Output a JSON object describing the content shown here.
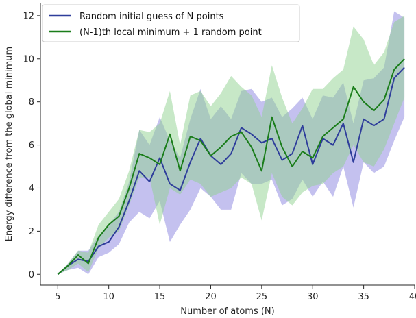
{
  "chart_data": {
    "type": "line",
    "title": "",
    "xlabel": "Number of atoms (N)",
    "ylabel": "Energy difference from the global minimum",
    "xlim": [
      3.3,
      40
    ],
    "ylim": [
      -0.5,
      12.6
    ],
    "xticks": [
      5,
      10,
      15,
      20,
      25,
      30,
      35,
      40
    ],
    "yticks": [
      0,
      2,
      4,
      6,
      8,
      10,
      12
    ],
    "grid": false,
    "legend_position": "top-left",
    "x": [
      5,
      6,
      7,
      8,
      9,
      10,
      11,
      12,
      13,
      14,
      15,
      16,
      17,
      18,
      19,
      20,
      21,
      22,
      23,
      24,
      25,
      26,
      27,
      28,
      29,
      30,
      31,
      32,
      33,
      34,
      35,
      36,
      37,
      38,
      39
    ],
    "series": [
      {
        "name": "Random initial guess of N points",
        "color": "#2e3d9b",
        "band_color": "#8a84e0",
        "values": [
          0,
          0.4,
          0.7,
          0.6,
          1.3,
          1.5,
          2.2,
          3.4,
          4.8,
          4.3,
          5.4,
          4.2,
          3.9,
          5.2,
          6.3,
          5.5,
          5.1,
          5.6,
          6.8,
          6.5,
          6.1,
          6.3,
          5.3,
          5.6,
          6.9,
          5.1,
          6.3,
          6.0,
          7.0,
          5.2,
          7.2,
          6.9,
          7.2,
          9.1,
          9.6
        ],
        "upper": [
          0,
          0.5,
          1.1,
          1.1,
          1.8,
          2.3,
          2.9,
          4.3,
          6.7,
          6.0,
          7.3,
          6.2,
          5.4,
          7.2,
          8.6,
          7.2,
          7.8,
          7.2,
          8.5,
          8.6,
          8.0,
          8.2,
          7.3,
          7.7,
          8.2,
          7.2,
          8.3,
          8.2,
          8.9,
          7.0,
          9.0,
          9.1,
          9.6,
          12.2,
          11.9
        ],
        "lower": [
          0,
          0.2,
          0.3,
          0.0,
          0.8,
          1.0,
          1.4,
          2.4,
          2.9,
          2.6,
          3.4,
          1.5,
          2.3,
          3.0,
          4.0,
          3.6,
          3.0,
          3.0,
          4.7,
          4.2,
          4.2,
          4.4,
          3.2,
          3.5,
          4.4,
          3.6,
          4.3,
          3.6,
          5.0,
          3.1,
          5.2,
          4.7,
          5.0,
          6.2,
          7.3
        ]
      },
      {
        "name": "(N-1)th local minimum + 1 random point",
        "color": "#1a7d1a",
        "band_color": "#8fd18f",
        "values": [
          0,
          0.4,
          0.9,
          0.5,
          1.7,
          2.3,
          2.7,
          4.0,
          5.6,
          5.4,
          5.1,
          6.5,
          4.8,
          6.4,
          6.2,
          5.5,
          5.9,
          6.4,
          6.6,
          5.9,
          4.8,
          7.3,
          5.9,
          5.0,
          5.7,
          5.4,
          6.4,
          6.8,
          7.2,
          8.7,
          8.0,
          7.6,
          8.1,
          9.5,
          10.0
        ],
        "upper": [
          0,
          0.5,
          1.1,
          1.0,
          2.3,
          2.9,
          3.5,
          4.8,
          6.7,
          6.6,
          7.0,
          8.5,
          6.0,
          8.3,
          8.5,
          7.8,
          8.4,
          9.2,
          8.7,
          8.3,
          7.3,
          9.7,
          8.2,
          7.0,
          7.7,
          8.6,
          8.6,
          9.1,
          9.5,
          11.5,
          10.9,
          9.7,
          10.3,
          11.7,
          12.0
        ],
        "lower": [
          0,
          0.2,
          0.5,
          0.1,
          1.2,
          1.7,
          2.0,
          3.2,
          4.5,
          4.5,
          2.3,
          4.0,
          3.7,
          4.4,
          4.2,
          3.6,
          3.8,
          4.0,
          4.5,
          4.2,
          2.5,
          4.7,
          3.6,
          3.2,
          3.8,
          4.1,
          4.2,
          4.7,
          5.0,
          6.0,
          5.2,
          5.0,
          5.8,
          7.0,
          8.2
        ]
      }
    ]
  }
}
